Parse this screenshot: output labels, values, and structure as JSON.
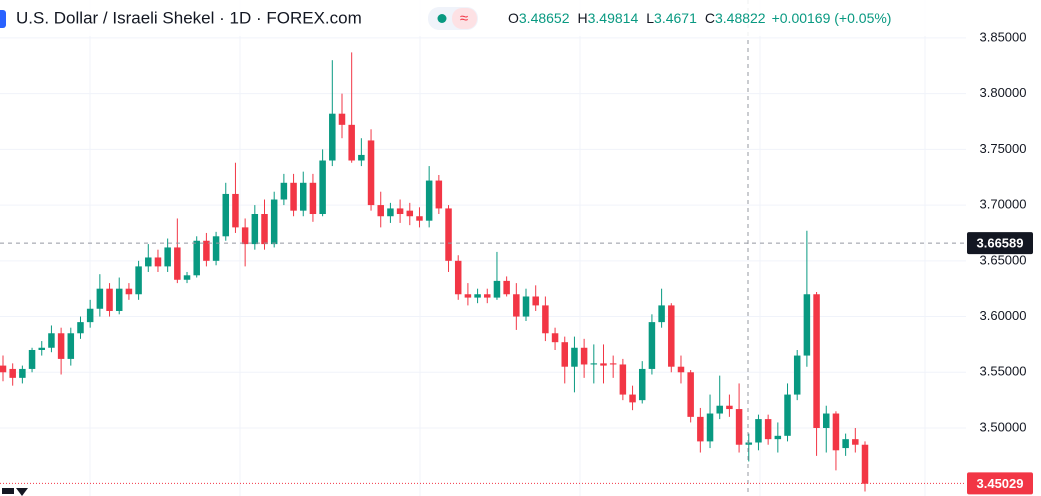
{
  "chart_data": {
    "type": "candlestick",
    "title": "U.S. Dollar / Israeli Shekel · 1D · FOREX.com",
    "header": [
      {
        "label": "O",
        "value": 3.48652
      },
      {
        "label": "H",
        "value": 3.49814
      },
      {
        "label": "L",
        "value": 3.4671
      },
      {
        "label": "C",
        "value": 3.48822
      }
    ],
    "change": "+0.00169 (+0.05%)",
    "up_color": "#089981",
    "down_color": "#f23645",
    "ylim": [
      3.439,
      3.884
    ],
    "yticks": [
      {
        "value": 3.85,
        "label": "3.85000"
      },
      {
        "value": 3.8,
        "label": "3.80000"
      },
      {
        "value": 3.75,
        "label": "3.75000"
      },
      {
        "value": 3.7,
        "label": "3.70000"
      },
      {
        "value": 3.65,
        "label": "3.65000"
      },
      {
        "value": 3.6,
        "label": "3.60000"
      },
      {
        "value": 3.55,
        "label": "3.55000"
      },
      {
        "value": 3.5,
        "label": "3.50000"
      }
    ],
    "grid": true,
    "crosshair_price": 3.66589,
    "last_price": 3.45029,
    "ohlc": [
      [
        3.556,
        3.565,
        3.542,
        3.55
      ],
      [
        3.553,
        3.558,
        3.538,
        3.545
      ],
      [
        3.545,
        3.556,
        3.54,
        3.553
      ],
      [
        3.553,
        3.572,
        3.55,
        3.57
      ],
      [
        3.57,
        3.578,
        3.565,
        3.572
      ],
      [
        3.572,
        3.592,
        3.568,
        3.585
      ],
      [
        3.585,
        3.59,
        3.548,
        3.562
      ],
      [
        3.562,
        3.59,
        3.556,
        3.585
      ],
      [
        3.585,
        3.6,
        3.58,
        3.595
      ],
      [
        3.595,
        3.615,
        3.59,
        3.607
      ],
      [
        3.607,
        3.638,
        3.6,
        3.625
      ],
      [
        3.625,
        3.63,
        3.6,
        3.605
      ],
      [
        3.605,
        3.635,
        3.602,
        3.625
      ],
      [
        3.625,
        3.63,
        3.615,
        3.62
      ],
      [
        3.62,
        3.65,
        3.615,
        3.645
      ],
      [
        3.645,
        3.665,
        3.64,
        3.653
      ],
      [
        3.653,
        3.66,
        3.64,
        3.645
      ],
      [
        3.645,
        3.67,
        3.64,
        3.662
      ],
      [
        3.662,
        3.688,
        3.63,
        3.633
      ],
      [
        3.633,
        3.64,
        3.63,
        3.637
      ],
      [
        3.637,
        3.672,
        3.635,
        3.668
      ],
      [
        3.668,
        3.675,
        3.645,
        3.65
      ],
      [
        3.65,
        3.676,
        3.646,
        3.672
      ],
      [
        3.672,
        3.72,
        3.668,
        3.71
      ],
      [
        3.71,
        3.738,
        3.675,
        3.68
      ],
      [
        3.68,
        3.688,
        3.645,
        3.665
      ],
      [
        3.665,
        3.7,
        3.66,
        3.692
      ],
      [
        3.692,
        3.705,
        3.66,
        3.665
      ],
      [
        3.665,
        3.712,
        3.662,
        3.705
      ],
      [
        3.705,
        3.728,
        3.7,
        3.72
      ],
      [
        3.72,
        3.728,
        3.69,
        3.695
      ],
      [
        3.695,
        3.73,
        3.69,
        3.72
      ],
      [
        3.72,
        3.728,
        3.685,
        3.692
      ],
      [
        3.692,
        3.75,
        3.69,
        3.74
      ],
      [
        3.74,
        3.83,
        3.735,
        3.782
      ],
      [
        3.782,
        3.8,
        3.76,
        3.772
      ],
      [
        3.772,
        3.837,
        3.738,
        3.74
      ],
      [
        3.74,
        3.76,
        3.735,
        3.745
      ],
      [
        3.758,
        3.768,
        3.695,
        3.7
      ],
      [
        3.7,
        3.712,
        3.68,
        3.69
      ],
      [
        3.69,
        3.702,
        3.684,
        3.697
      ],
      [
        3.697,
        3.705,
        3.684,
        3.692
      ],
      [
        3.695,
        3.702,
        3.682,
        3.69
      ],
      [
        3.69,
        3.698,
        3.68,
        3.686
      ],
      [
        3.686,
        3.735,
        3.68,
        3.722
      ],
      [
        3.722,
        3.727,
        3.692,
        3.697
      ],
      [
        3.697,
        3.7,
        3.64,
        3.65
      ],
      [
        3.65,
        3.655,
        3.615,
        3.62
      ],
      [
        3.62,
        3.63,
        3.61,
        3.617
      ],
      [
        3.617,
        3.625,
        3.612,
        3.62
      ],
      [
        3.62,
        3.625,
        3.612,
        3.617
      ],
      [
        3.617,
        3.658,
        3.615,
        3.632
      ],
      [
        3.632,
        3.636,
        3.618,
        3.62
      ],
      [
        3.62,
        3.63,
        3.588,
        3.6
      ],
      [
        3.6,
        3.625,
        3.596,
        3.618
      ],
      [
        3.618,
        3.628,
        3.605,
        3.61
      ],
      [
        3.61,
        3.618,
        3.578,
        3.585
      ],
      [
        3.585,
        3.59,
        3.57,
        3.577
      ],
      [
        3.577,
        3.582,
        3.54,
        3.555
      ],
      [
        3.555,
        3.582,
        3.532,
        3.572
      ],
      [
        3.572,
        3.58,
        3.545,
        3.557
      ],
      [
        3.557,
        3.575,
        3.54,
        3.558
      ],
      [
        3.558,
        3.575,
        3.54,
        3.556
      ],
      [
        3.558,
        3.565,
        3.545,
        3.557
      ],
      [
        3.557,
        3.562,
        3.525,
        3.53
      ],
      [
        3.53,
        3.538,
        3.516,
        3.523
      ],
      [
        3.525,
        3.56,
        3.522,
        3.553
      ],
      [
        3.553,
        3.602,
        3.548,
        3.595
      ],
      [
        3.595,
        3.625,
        3.59,
        3.61
      ],
      [
        3.61,
        3.612,
        3.55,
        3.555
      ],
      [
        3.555,
        3.565,
        3.54,
        3.55
      ],
      [
        3.55,
        3.552,
        3.505,
        3.51
      ],
      [
        3.51,
        3.518,
        3.478,
        3.488
      ],
      [
        3.488,
        3.53,
        3.482,
        3.513
      ],
      [
        3.513,
        3.547,
        3.508,
        3.52
      ],
      [
        3.52,
        3.53,
        3.51,
        3.517
      ],
      [
        3.517,
        3.54,
        3.478,
        3.485
      ],
      [
        3.485,
        3.495,
        3.47,
        3.487
      ],
      [
        3.487,
        3.512,
        3.48,
        3.508
      ],
      [
        3.508,
        3.512,
        3.485,
        3.49
      ],
      [
        3.49,
        3.505,
        3.478,
        3.493
      ],
      [
        3.493,
        3.54,
        3.488,
        3.53
      ],
      [
        3.53,
        3.57,
        3.525,
        3.565
      ],
      [
        3.565,
        3.677,
        3.555,
        3.62
      ],
      [
        3.62,
        3.622,
        3.475,
        3.5
      ],
      [
        3.5,
        3.52,
        3.478,
        3.513
      ],
      [
        3.513,
        3.515,
        3.462,
        3.48
      ],
      [
        3.482,
        3.495,
        3.475,
        3.49
      ],
      [
        3.49,
        3.5,
        3.478,
        3.485
      ],
      [
        3.485,
        3.488,
        3.443,
        3.45
      ]
    ]
  }
}
